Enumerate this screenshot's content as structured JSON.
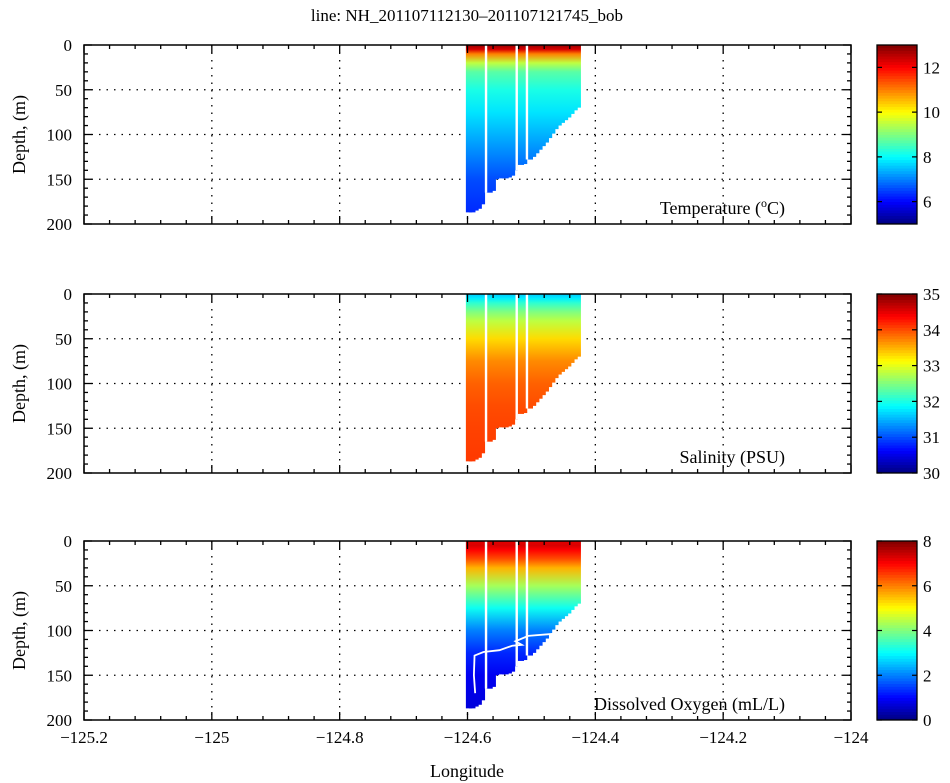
{
  "chart_data": {
    "type": "heatmap",
    "title": "line: NH_201107112130–201107121745_bob",
    "xlabel": "Longitude",
    "ylabel": "Depth, (m)",
    "xlim": [
      -125.2,
      -124.0
    ],
    "xticks": [
      -125.2,
      -125,
      -124.8,
      -124.6,
      -124.4,
      -124.2,
      -124
    ],
    "xtick_labels": [
      "−125.2",
      "−125",
      "−124.8",
      "−124.6",
      "−124.4",
      "−124.2",
      "−124"
    ],
    "ylim": [
      0,
      200
    ],
    "yticks": [
      0,
      50,
      100,
      150,
      200
    ],
    "grid": true,
    "profile_depths": [
      0,
      5,
      10,
      20,
      30,
      50,
      75,
      100,
      125,
      150,
      190
    ],
    "casts": [
      {
        "lon": -124.598,
        "max_depth": 187
      },
      {
        "lon": -124.593,
        "max_depth": 187
      },
      {
        "lon": -124.588,
        "max_depth": 185
      },
      {
        "lon": -124.583,
        "max_depth": 183
      },
      {
        "lon": -124.578,
        "max_depth": 178
      },
      {
        "lon": -124.566,
        "max_depth": 165
      },
      {
        "lon": -124.561,
        "max_depth": 163
      },
      {
        "lon": -124.556,
        "max_depth": 150
      },
      {
        "lon": -124.551,
        "max_depth": 148
      },
      {
        "lon": -124.546,
        "max_depth": 149
      },
      {
        "lon": -124.541,
        "max_depth": 149
      },
      {
        "lon": -124.536,
        "max_depth": 148
      },
      {
        "lon": -124.531,
        "max_depth": 146
      },
      {
        "lon": -124.527,
        "max_depth": 140
      },
      {
        "lon": -124.517,
        "max_depth": 134
      },
      {
        "lon": -124.512,
        "max_depth": 133
      },
      {
        "lon": -124.503,
        "max_depth": 128
      },
      {
        "lon": -124.498,
        "max_depth": 125
      },
      {
        "lon": -124.493,
        "max_depth": 121
      },
      {
        "lon": -124.488,
        "max_depth": 117
      },
      {
        "lon": -124.483,
        "max_depth": 113
      },
      {
        "lon": -124.478,
        "max_depth": 109
      },
      {
        "lon": -124.473,
        "max_depth": 104
      },
      {
        "lon": -124.468,
        "max_depth": 99
      },
      {
        "lon": -124.463,
        "max_depth": 94
      },
      {
        "lon": -124.458,
        "max_depth": 90
      },
      {
        "lon": -124.453,
        "max_depth": 87
      },
      {
        "lon": -124.448,
        "max_depth": 84
      },
      {
        "lon": -124.443,
        "max_depth": 81
      },
      {
        "lon": -124.438,
        "max_depth": 77
      },
      {
        "lon": -124.433,
        "max_depth": 73
      },
      {
        "lon": -124.428,
        "max_depth": 70
      }
    ],
    "track_lines": [
      {
        "lon": -124.571,
        "max_depth": 165
      },
      {
        "lon": -124.523,
        "max_depth": 140
      },
      {
        "lon": -124.507,
        "max_depth": 128
      }
    ],
    "oxygen_track": [
      [
        -124.588,
        170
      ],
      [
        -124.59,
        150
      ],
      [
        -124.589,
        128
      ],
      [
        -124.575,
        124
      ],
      [
        -124.55,
        122
      ],
      [
        -124.53,
        117
      ],
      [
        -124.515,
        116
      ],
      [
        -124.525,
        112
      ],
      [
        -124.505,
        106
      ],
      [
        -124.47,
        104
      ],
      [
        -124.455,
        103
      ]
    ],
    "panels": [
      {
        "name": "temperature",
        "label_pre": "Temperature (",
        "label_sup": "o",
        "label_post": "C)",
        "clim": [
          5,
          13
        ],
        "cbar_ticks": [
          6,
          8,
          10,
          12
        ],
        "profile": [
          12.8,
          12.3,
          11.0,
          9.5,
          8.7,
          8.2,
          7.8,
          7.4,
          7.0,
          6.6,
          6.3
        ]
      },
      {
        "name": "salinity",
        "label_pre": "Salinity (PSU)",
        "label_sup": "",
        "label_post": "",
        "clim": [
          30,
          35
        ],
        "cbar_ticks": [
          30,
          31,
          32,
          33,
          34,
          35
        ],
        "profile": [
          31.6,
          31.8,
          32.1,
          32.5,
          32.8,
          33.3,
          33.7,
          33.9,
          34.0,
          34.05,
          34.1
        ]
      },
      {
        "name": "dissolved-oxygen",
        "label_pre": "Dissolved Oxygen (mL/L)",
        "label_sup": "",
        "label_post": "",
        "clim": [
          0,
          8
        ],
        "cbar_ticks": [
          0,
          2,
          4,
          6,
          8
        ],
        "profile": [
          7.2,
          7.3,
          7.0,
          6.4,
          5.6,
          4.3,
          3.1,
          2.0,
          1.3,
          0.9,
          0.7
        ]
      }
    ]
  }
}
